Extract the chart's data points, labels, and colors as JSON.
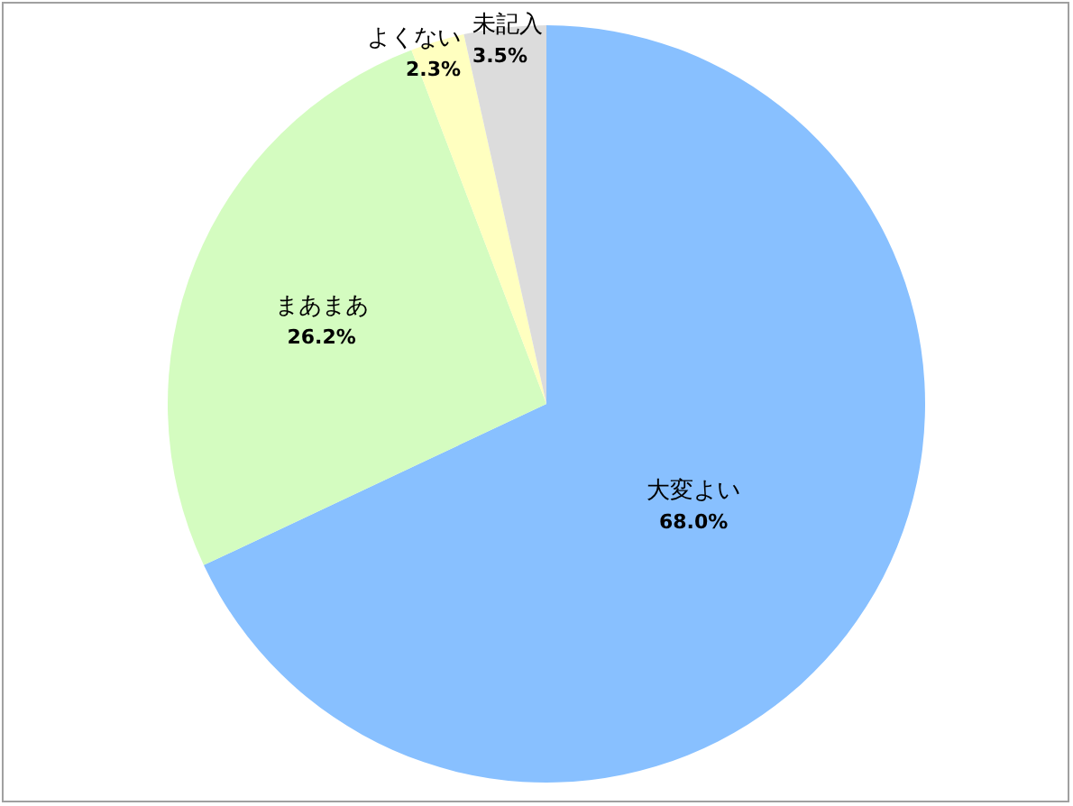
{
  "chart_data": {
    "type": "pie",
    "categories": [
      "大変よい",
      "まあまあ",
      "よくない",
      "未記入"
    ],
    "values": [
      68.0,
      26.2,
      2.3,
      3.5
    ],
    "colors": [
      "#88c0ff",
      "#d4fcc0",
      "#ffffc0",
      "#dcdcdc"
    ],
    "value_labels": [
      "68.0%",
      "26.2%",
      "2.3%",
      "3.5%"
    ]
  }
}
